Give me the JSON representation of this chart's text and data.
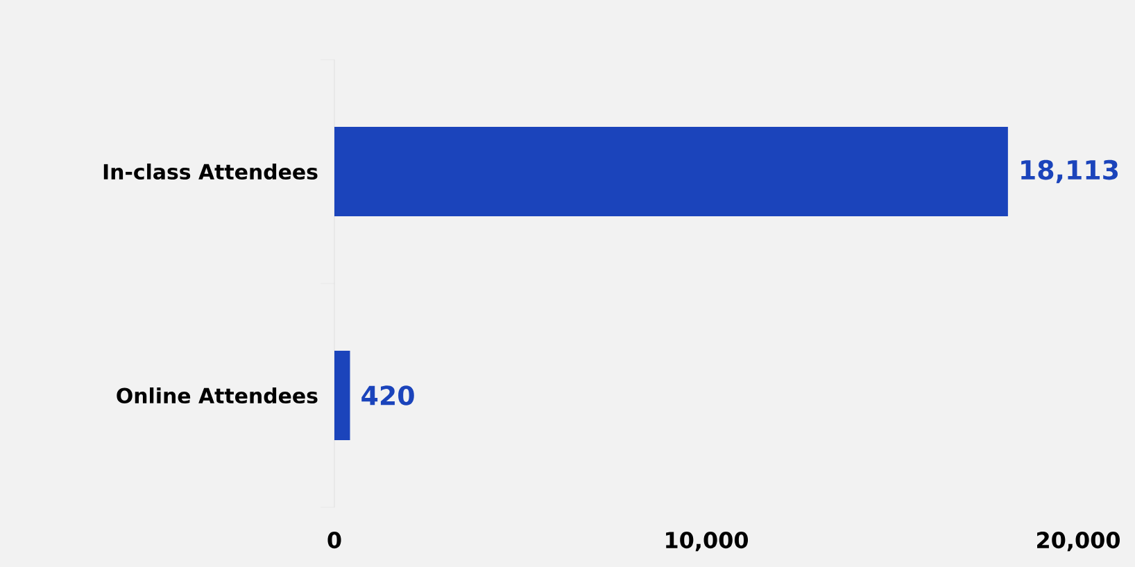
{
  "chart_data": {
    "type": "bar",
    "orientation": "horizontal",
    "categories": [
      "In-class Attendees",
      "Online Attendees"
    ],
    "values": [
      18113,
      420
    ],
    "value_labels": [
      "18,113",
      "420"
    ],
    "color": "#1b44bb",
    "xlim": [
      0,
      20000
    ],
    "xticks": [
      0,
      {
        "value": 10000,
        "label": "10,000"
      },
      {
        "value": 20000,
        "label": "20,000"
      }
    ],
    "grid": false
  }
}
